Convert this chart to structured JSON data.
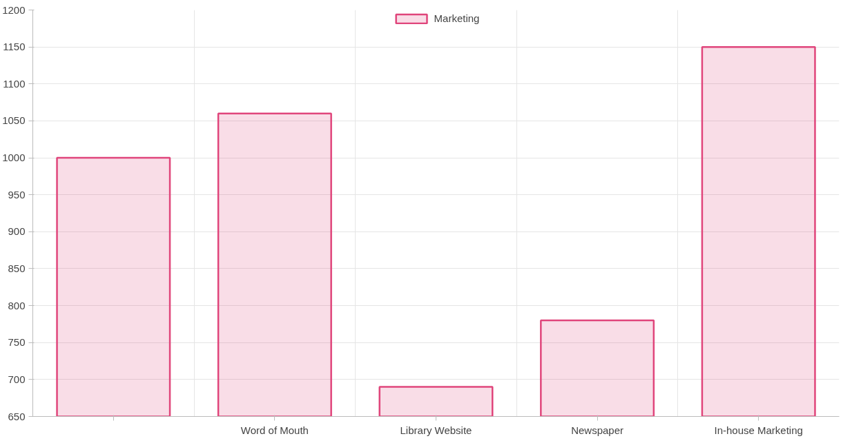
{
  "chart_data": {
    "type": "bar",
    "categories": [
      null,
      "Word of Mouth",
      "Library Website",
      "Newspaper",
      "In-house Marketing"
    ],
    "series": [
      {
        "name": "Marketing",
        "color": "#e0457b",
        "values": [
          1000,
          1060,
          690,
          780,
          1150
        ]
      }
    ],
    "ylim": [
      650,
      1200
    ],
    "yticks": [
      650,
      700,
      750,
      800,
      850,
      900,
      950,
      1000,
      1050,
      1100,
      1150,
      1200
    ],
    "grid": true,
    "legend": "top"
  }
}
